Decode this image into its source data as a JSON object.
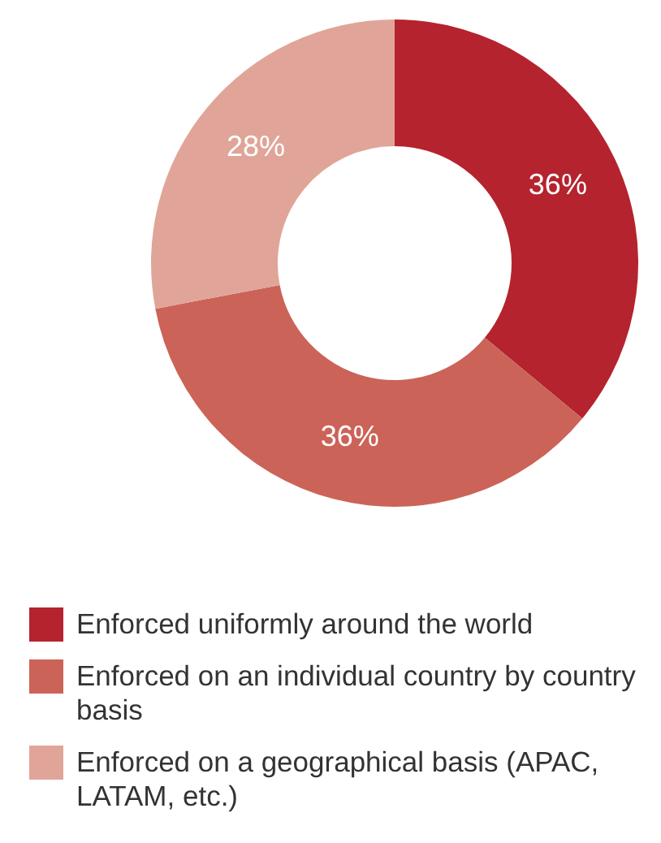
{
  "chart_data": {
    "type": "donut",
    "categories": [
      "Enforced uniformly around the world",
      "Enforced on an individual country by country basis",
      "Enforced on a geographical basis (APAC, LATAM, etc.)"
    ],
    "values": [
      36,
      36,
      28
    ],
    "colors": [
      "#b5232e",
      "#cc6358",
      "#e0a598"
    ],
    "value_labels": [
      "36%",
      "36%",
      "28%"
    ],
    "legend": "bottom"
  }
}
